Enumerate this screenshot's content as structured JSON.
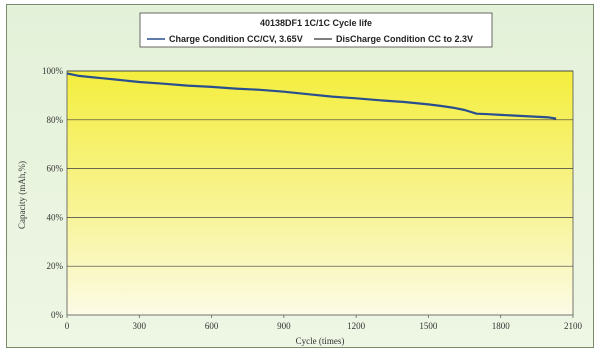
{
  "chart_data": {
    "type": "line",
    "title": "40138DF1 1C/1C Cycle life",
    "xlabel": "Cycle (times)",
    "ylabel": "Capacity (mAh,%)",
    "xlim": [
      0,
      2100
    ],
    "ylim": [
      0,
      100
    ],
    "x_ticks": [
      "0",
      "300",
      "600",
      "900",
      "1200",
      "1500",
      "1800",
      "2100"
    ],
    "y_ticks": [
      "0%",
      "20%",
      "40%",
      "60%",
      "80%",
      "100%"
    ],
    "grid": "horizontal",
    "legend_position": "top-center",
    "series": [
      {
        "name": "Charge Condition CC/CV, 3.65V",
        "color": "#2a4f8f",
        "x": [
          0,
          50,
          100,
          150,
          200,
          300,
          400,
          500,
          600,
          700,
          800,
          900,
          1000,
          1100,
          1200,
          1300,
          1400,
          1500,
          1550,
          1600,
          1650,
          1700,
          1750,
          1800,
          1900,
          2000,
          2030
        ],
        "y": [
          99,
          98,
          97.5,
          97,
          96.5,
          95.5,
          94.8,
          94,
          93.5,
          92.8,
          92.3,
          91.5,
          90.5,
          89.5,
          88.8,
          88,
          87.3,
          86.3,
          85.7,
          85,
          84,
          82.5,
          82.3,
          82,
          81.5,
          81,
          80.5
        ]
      }
    ],
    "legend_entries": [
      "Charge Condition CC/CV, 3.65V",
      "DisCharge Condition CC to 2.3V"
    ]
  },
  "colors": {
    "plot_top": "#f4ee3e",
    "plot_bottom": "#fbfad8",
    "line": "#2a4f8f",
    "grid": "#3a3a3a"
  }
}
